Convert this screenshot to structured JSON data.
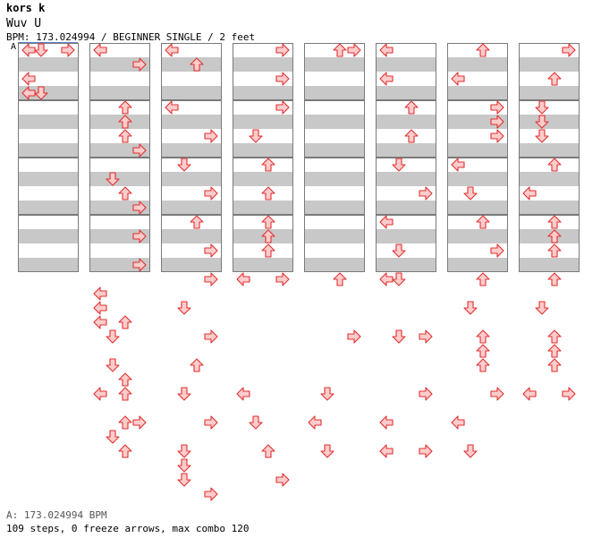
{
  "header": {
    "artist": "kors k",
    "song": "Wuv U",
    "info": "BPM: 173.024994 / BEGINNER SINGLE / 2 feet",
    "bpm_marker": "A"
  },
  "footer": {
    "bpm": "A: 173.024994 BPM",
    "stats": "109 steps, 0 freeze arrows, max combo 120"
  },
  "colors": {
    "arrow_fill": "#ffcccc",
    "arrow_stroke": "#e03030",
    "band_gray": "#c8c8c8",
    "border": "#7a7a7a",
    "bpm_line": "#5a7fd0"
  },
  "chart_data": {
    "type": "table",
    "title": "Wuv U — BEGINNER SINGLE step chart",
    "bpm": 173.024994,
    "measures": 32,
    "rows_per_measure": 4,
    "lanes": [
      "left",
      "down",
      "up",
      "right"
    ],
    "arrow_icon": "step-arrow-icon",
    "steps": [
      [
        1,
        0,
        0
      ],
      [
        1,
        1,
        0
      ],
      [
        1,
        3,
        0
      ],
      [
        1,
        0,
        2
      ],
      [
        1,
        0,
        3
      ],
      [
        1,
        1,
        3
      ],
      [
        2,
        0,
        0
      ],
      [
        2,
        3,
        1
      ],
      [
        2,
        2,
        4
      ],
      [
        2,
        2,
        5
      ],
      [
        2,
        2,
        6
      ],
      [
        2,
        3,
        7
      ],
      [
        2,
        1,
        9
      ],
      [
        2,
        2,
        10
      ],
      [
        2,
        3,
        11
      ],
      [
        2,
        3,
        13
      ],
      [
        2,
        3,
        15
      ],
      [
        2,
        0,
        17
      ],
      [
        2,
        0,
        18
      ],
      [
        2,
        0,
        19
      ],
      [
        2,
        2,
        19
      ],
      [
        2,
        1,
        20
      ],
      [
        2,
        1,
        22
      ],
      [
        2,
        2,
        23
      ],
      [
        2,
        0,
        24
      ],
      [
        2,
        2,
        24
      ],
      [
        2,
        2,
        26
      ],
      [
        2,
        3,
        26
      ],
      [
        2,
        1,
        27
      ],
      [
        2,
        2,
        28
      ],
      [
        3,
        0,
        0
      ],
      [
        3,
        2,
        1
      ],
      [
        3,
        0,
        4
      ],
      [
        3,
        3,
        6
      ],
      [
        3,
        1,
        8
      ],
      [
        3,
        3,
        10
      ],
      [
        3,
        2,
        12
      ],
      [
        3,
        3,
        14
      ],
      [
        3,
        3,
        16
      ],
      [
        3,
        1,
        18
      ],
      [
        3,
        3,
        20
      ],
      [
        3,
        2,
        22
      ],
      [
        3,
        1,
        24
      ],
      [
        3,
        3,
        26
      ],
      [
        3,
        1,
        28
      ],
      [
        3,
        1,
        29
      ],
      [
        3,
        1,
        30
      ],
      [
        3,
        3,
        31
      ],
      [
        4,
        3,
        0
      ],
      [
        4,
        3,
        2
      ],
      [
        4,
        3,
        4
      ],
      [
        4,
        1,
        6
      ],
      [
        4,
        2,
        8
      ],
      [
        4,
        2,
        10
      ],
      [
        4,
        2,
        12
      ],
      [
        4,
        2,
        13
      ],
      [
        4,
        2,
        14
      ],
      [
        4,
        0,
        16
      ],
      [
        4,
        3,
        16
      ],
      [
        4,
        0,
        24
      ],
      [
        4,
        1,
        26
      ],
      [
        4,
        2,
        28
      ],
      [
        4,
        3,
        30
      ],
      [
        5,
        2,
        0
      ],
      [
        5,
        3,
        0
      ],
      [
        5,
        2,
        16
      ],
      [
        5,
        3,
        20
      ],
      [
        5,
        1,
        24
      ],
      [
        5,
        0,
        26
      ],
      [
        5,
        1,
        28
      ],
      [
        6,
        0,
        0
      ],
      [
        6,
        0,
        2
      ],
      [
        6,
        2,
        4
      ],
      [
        6,
        2,
        6
      ],
      [
        6,
        1,
        8
      ],
      [
        6,
        3,
        10
      ],
      [
        6,
        0,
        12
      ],
      [
        6,
        1,
        14
      ],
      [
        6,
        0,
        16
      ],
      [
        6,
        1,
        16
      ],
      [
        6,
        1,
        20
      ],
      [
        6,
        3,
        20
      ],
      [
        6,
        3,
        24
      ],
      [
        6,
        0,
        26
      ],
      [
        6,
        0,
        28
      ],
      [
        6,
        3,
        28
      ],
      [
        7,
        2,
        0
      ],
      [
        7,
        0,
        2
      ],
      [
        7,
        3,
        4
      ],
      [
        7,
        3,
        5
      ],
      [
        7,
        3,
        6
      ],
      [
        7,
        0,
        8
      ],
      [
        7,
        1,
        10
      ],
      [
        7,
        2,
        12
      ],
      [
        7,
        3,
        14
      ],
      [
        7,
        2,
        16
      ],
      [
        7,
        1,
        18
      ],
      [
        7,
        2,
        20
      ],
      [
        7,
        2,
        21
      ],
      [
        7,
        2,
        22
      ],
      [
        7,
        3,
        24
      ],
      [
        7,
        0,
        26
      ],
      [
        7,
        1,
        28
      ],
      [
        8,
        3,
        0
      ],
      [
        8,
        2,
        2
      ],
      [
        8,
        1,
        4
      ],
      [
        8,
        1,
        5
      ],
      [
        8,
        1,
        6
      ],
      [
        8,
        2,
        8
      ],
      [
        8,
        0,
        10
      ],
      [
        8,
        2,
        12
      ],
      [
        8,
        2,
        13
      ],
      [
        8,
        2,
        14
      ],
      [
        8,
        2,
        16
      ],
      [
        8,
        1,
        18
      ],
      [
        8,
        2,
        20
      ],
      [
        8,
        2,
        21
      ],
      [
        8,
        2,
        22
      ],
      [
        8,
        0,
        24
      ],
      [
        8,
        3,
        24
      ]
    ]
  }
}
